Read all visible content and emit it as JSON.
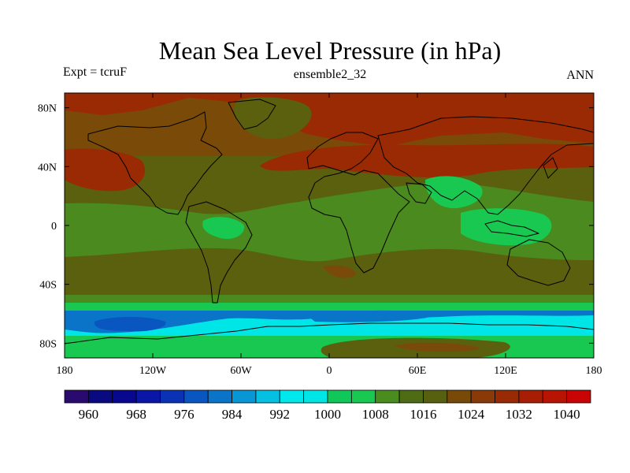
{
  "title": "Mean Sea Level Pressure (in hPa)",
  "subtitle_left": "Expt = tcruF",
  "subtitle_center": "ensemble2_32",
  "subtitle_right": "ANN",
  "map": {
    "projection": "cylindrical-equidistant",
    "lon_range": [
      -180,
      180
    ],
    "lat_range": [
      -90,
      90
    ],
    "x_ticks": [
      {
        "value": -180,
        "label": "180"
      },
      {
        "value": -120,
        "label": "120W"
      },
      {
        "value": -60,
        "label": "60W"
      },
      {
        "value": 0,
        "label": "0"
      },
      {
        "value": 60,
        "label": "60E"
      },
      {
        "value": 120,
        "label": "120E"
      },
      {
        "value": 180,
        "label": "180"
      }
    ],
    "y_ticks": [
      {
        "value": 80,
        "label": "80N"
      },
      {
        "value": 40,
        "label": "40N"
      },
      {
        "value": 0,
        "label": "0"
      },
      {
        "value": -40,
        "label": "40S"
      },
      {
        "value": -80,
        "label": "80S"
      }
    ]
  },
  "colorbar": {
    "colors": [
      "#2a0a6e",
      "#0a0a80",
      "#08088f",
      "#0a16a5",
      "#0a32b4",
      "#0a56c0",
      "#0a74c8",
      "#0896d4",
      "#05c0e0",
      "#00e8ec",
      "#00e6e6",
      "#10c85a",
      "#18c850",
      "#4a8c1e",
      "#4e6c14",
      "#56600e",
      "#784a08",
      "#8a3a06",
      "#982a04",
      "#a81e04",
      "#b81404",
      "#c80404"
    ],
    "labels": [
      "960",
      "968",
      "976",
      "984",
      "992",
      "1000",
      "1008",
      "1016",
      "1024",
      "1032",
      "1040"
    ],
    "label_positions": [
      1,
      3,
      5,
      7,
      9,
      11,
      13,
      15,
      17,
      19,
      21
    ]
  },
  "field_colors": {
    "high": "#9a2a04",
    "mid_high": "#7a4a08",
    "base": "#5a600e",
    "low_mid": "#4a8a1e",
    "low": "#18c850",
    "cyan": "#00e6e6",
    "blue": "#0a74c8",
    "deep_blue": "#0a56c0"
  }
}
